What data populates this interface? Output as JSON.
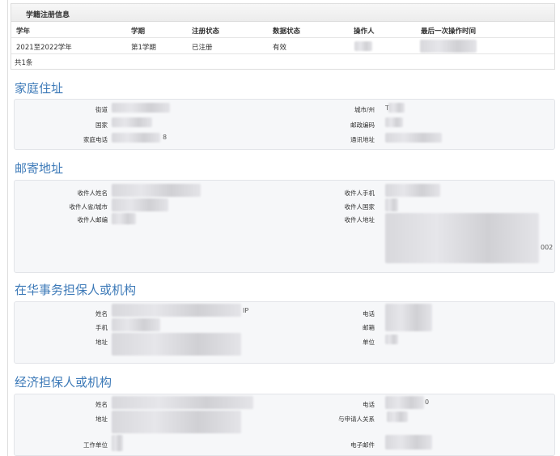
{
  "registration": {
    "title": "学籍注册信息",
    "columns": [
      "学年",
      "学期",
      "注册状态",
      "数据状态",
      "操作人",
      "最后一次操作时间"
    ],
    "rows": [
      [
        "2021至2022学年",
        "第1学期",
        "已注册",
        "有效",
        "",
        ""
      ]
    ],
    "footer": "共1条"
  },
  "home_address": {
    "title": "家庭住址",
    "labels": {
      "street": "街道",
      "country": "国家",
      "home_phone": "家庭电话",
      "city": "城市/州",
      "postcode": "邮政编码",
      "mail_address": "通讯地址"
    },
    "fragments": {
      "phone_tail": "8",
      "city_head": "T"
    }
  },
  "mailing_address": {
    "title": "邮寄地址",
    "labels": {
      "name": "收件人姓名",
      "province": "收件人省/城市",
      "postcode": "收件人邮编",
      "mobile": "收件人手机",
      "country": "收件人国家",
      "address": "收件人地址"
    },
    "fragments": {
      "address_tail": "002"
    }
  },
  "china_guarantor": {
    "title": "在华事务担保人或机构",
    "labels": {
      "name": "姓名",
      "mobile": "手机",
      "address": "地址",
      "phone": "电话",
      "email": "邮箱",
      "unit": "单位"
    },
    "fragments": {
      "name_tail": "IP"
    }
  },
  "financial_guarantor": {
    "title": "经济担保人或机构",
    "labels": {
      "name": "姓名",
      "address": "地址",
      "employer": "工作单位",
      "phone": "电话",
      "relation": "与申请人关系",
      "email": "电子邮件"
    },
    "fragments": {
      "phone_tail": "0"
    }
  },
  "colors": {
    "title_blue": "#3d7ab8",
    "panel_bg": "#f6f7f9"
  }
}
